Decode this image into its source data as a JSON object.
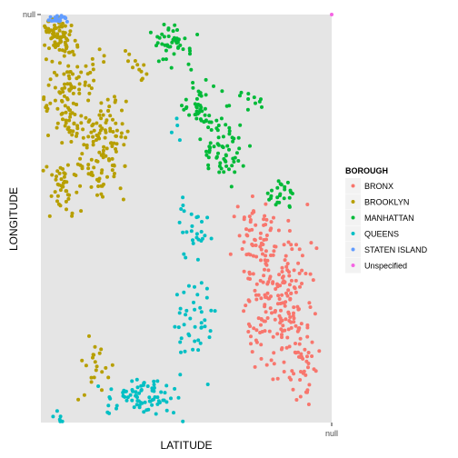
{
  "chart_data": {
    "type": "scatter",
    "title": "",
    "xlabel": "LATITUDE",
    "ylabel": "LONGITUDE",
    "x_tick_labels": [
      "null"
    ],
    "y_tick_labels": [
      "null"
    ],
    "xlim": [
      0,
      1
    ],
    "ylim": [
      0,
      1
    ],
    "grid": false,
    "legend": {
      "title": "BOROUGH",
      "position": "right",
      "entries": [
        {
          "name": "BRONX",
          "color": "#F8766D"
        },
        {
          "name": "BROOKLYN",
          "color": "#B79F00"
        },
        {
          "name": "MANHATTAN",
          "color": "#00BA38"
        },
        {
          "name": "QUEENS",
          "color": "#00BFC4"
        },
        {
          "name": "STATEN ISLAND",
          "color": "#619CFF"
        },
        {
          "name": "Unspecified",
          "color": "#F564E3"
        }
      ]
    },
    "series": [
      {
        "name": "BROOKLYN",
        "color": "#B79F00",
        "clusters": [
          [
            0.06,
            0.95,
            0.05,
            0.05,
            70
          ],
          [
            0.11,
            0.8,
            0.1,
            0.11,
            120
          ],
          [
            0.2,
            0.66,
            0.1,
            0.12,
            90
          ],
          [
            0.07,
            0.58,
            0.05,
            0.07,
            40
          ],
          [
            0.19,
            0.13,
            0.06,
            0.07,
            22
          ],
          [
            0.33,
            0.87,
            0.05,
            0.05,
            12
          ],
          [
            0.25,
            0.74,
            0.06,
            0.07,
            25
          ]
        ]
      },
      {
        "name": "MANHATTAN",
        "color": "#00BA38",
        "clusters": [
          [
            0.45,
            0.93,
            0.06,
            0.05,
            45
          ],
          [
            0.55,
            0.77,
            0.07,
            0.06,
            50
          ],
          [
            0.64,
            0.67,
            0.07,
            0.06,
            55
          ],
          [
            0.83,
            0.56,
            0.05,
            0.04,
            25
          ],
          [
            0.72,
            0.79,
            0.04,
            0.03,
            10
          ]
        ]
      },
      {
        "name": "QUEENS",
        "color": "#00BFC4",
        "clusters": [
          [
            0.34,
            0.06,
            0.12,
            0.05,
            80
          ],
          [
            0.53,
            0.25,
            0.07,
            0.13,
            45
          ],
          [
            0.52,
            0.48,
            0.06,
            0.08,
            25
          ],
          [
            0.05,
            0.02,
            0.02,
            0.02,
            6
          ],
          [
            0.48,
            0.72,
            0.03,
            0.03,
            4
          ]
        ]
      },
      {
        "name": "BRONX",
        "color": "#F8766D",
        "clusters": [
          [
            0.82,
            0.3,
            0.12,
            0.17,
            210
          ],
          [
            0.74,
            0.47,
            0.07,
            0.07,
            50
          ],
          [
            0.91,
            0.13,
            0.05,
            0.08,
            30
          ]
        ]
      },
      {
        "name": "STATEN ISLAND",
        "color": "#619CFF",
        "clusters": [
          [
            0.06,
            0.99,
            0.04,
            0.01,
            20
          ]
        ]
      },
      {
        "name": "Unspecified",
        "color": "#F564E3",
        "clusters": [
          [
            1.0,
            1.0,
            0,
            0,
            1
          ]
        ]
      }
    ]
  }
}
